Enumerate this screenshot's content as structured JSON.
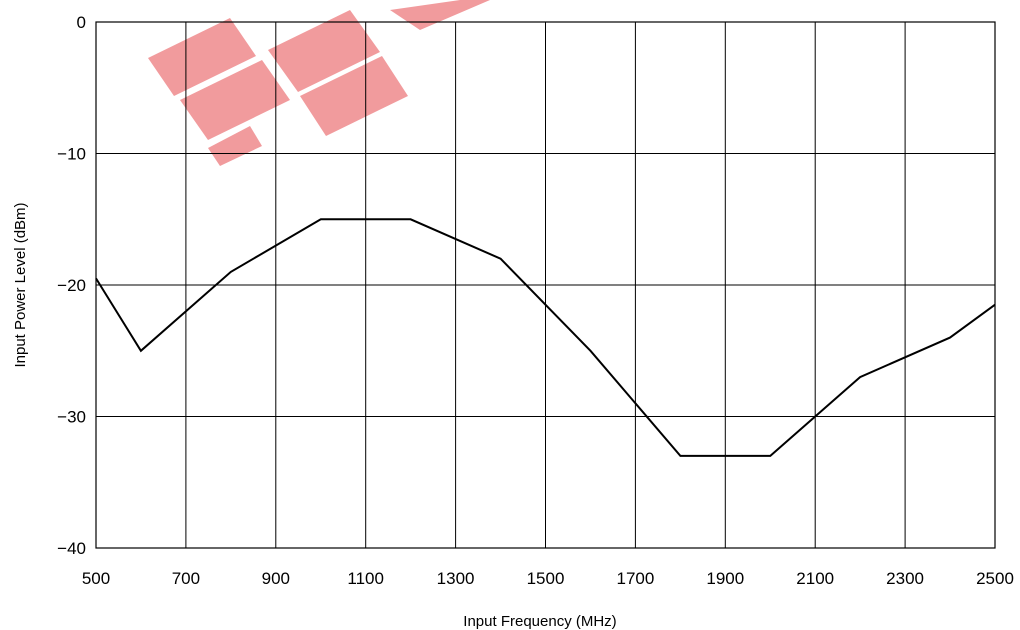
{
  "chart_data": {
    "type": "line",
    "title": "",
    "xlabel": "Input Frequency (MHz)",
    "ylabel": "Input Power Level (dBm)",
    "xlim": [
      500,
      2500
    ],
    "ylim": [
      -40,
      0
    ],
    "xticks": [
      500,
      700,
      900,
      1100,
      1300,
      1500,
      1700,
      1900,
      2100,
      2300,
      2500
    ],
    "yticks": [
      0,
      -10,
      -20,
      -30,
      -40
    ],
    "xtick_labels": [
      "500",
      "700",
      "900",
      "1100",
      "1300",
      "1500",
      "1700",
      "1900",
      "2100",
      "2300",
      "2500"
    ],
    "ytick_labels": [
      "0",
      "−10",
      "−20",
      "−30",
      "−40"
    ],
    "grid": true,
    "series": [
      {
        "x": [
          500,
          600,
          800,
          1000,
          1200,
          1400,
          1600,
          1800,
          2000,
          2200,
          2400,
          2500
        ],
        "y": [
          -19.5,
          -25,
          -19,
          -15,
          -15,
          -18,
          -25,
          -33,
          -33,
          -27,
          -24,
          -21.5
        ],
        "color": "#000000"
      }
    ]
  },
  "watermark": {
    "color": "#e8585b"
  }
}
